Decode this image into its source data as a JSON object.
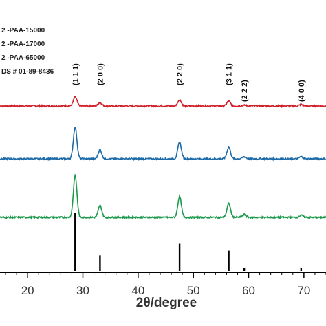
{
  "chart_data": {
    "type": "line",
    "xlabel": "2θ/degree",
    "xlim": [
      15,
      74
    ],
    "xticks": [
      20,
      30,
      40,
      50,
      60,
      70
    ],
    "xtick_labels": [
      "20",
      "30",
      "40",
      "50",
      "60",
      "70"
    ],
    "legend": {
      "placement": "top-left",
      "entries": [
        "2 -PAA-15000",
        "2 -PAA-17000",
        "2 -PAA-65000",
        "DS # 01-89-8436"
      ]
    },
    "series": [
      {
        "name": "-PAA-15000",
        "color": "#d0202a",
        "peaks": [
          {
            "x": 28.6,
            "height": 13
          },
          {
            "x": 33.1,
            "height": 5
          },
          {
            "x": 47.5,
            "height": 9
          },
          {
            "x": 56.4,
            "height": 7
          },
          {
            "x": 59.2,
            "height": 1
          },
          {
            "x": 69.5,
            "height": 2
          }
        ]
      },
      {
        "name": "-PAA-17000",
        "color": "#1c6aa8",
        "peaks": [
          {
            "x": 28.6,
            "height": 46
          },
          {
            "x": 33.1,
            "height": 13
          },
          {
            "x": 47.5,
            "height": 24
          },
          {
            "x": 56.4,
            "height": 17
          },
          {
            "x": 59.2,
            "height": 3
          },
          {
            "x": 69.5,
            "height": 3
          }
        ]
      },
      {
        "name": "-PAA-65000",
        "color": "#1a9a4a",
        "peaks": [
          {
            "x": 28.6,
            "height": 61
          },
          {
            "x": 33.1,
            "height": 17
          },
          {
            "x": 47.5,
            "height": 30
          },
          {
            "x": 56.4,
            "height": 20
          },
          {
            "x": 59.2,
            "height": 4
          },
          {
            "x": 69.5,
            "height": 3
          }
        ]
      }
    ],
    "reference_lines": {
      "name": "DS # 01-89-8436",
      "color": "#000000",
      "peaks": [
        {
          "x": 28.6,
          "intensity": 100
        },
        {
          "x": 33.1,
          "intensity": 27
        },
        {
          "x": 47.5,
          "intensity": 47
        },
        {
          "x": 56.4,
          "intensity": 35
        },
        {
          "x": 59.2,
          "intensity": 5
        },
        {
          "x": 69.5,
          "intensity": 5
        }
      ]
    },
    "annotations": [
      {
        "label": "(1 1 1)",
        "x": 28.6
      },
      {
        "label": "(2 0 0)",
        "x": 33.1
      },
      {
        "label": "(2 2 0)",
        "x": 47.5
      },
      {
        "label": "(3 1 1)",
        "x": 56.4
      },
      {
        "label": "(2 2 2)",
        "x": 59.2
      },
      {
        "label": "(4 0 0)",
        "x": 69.5
      }
    ]
  }
}
